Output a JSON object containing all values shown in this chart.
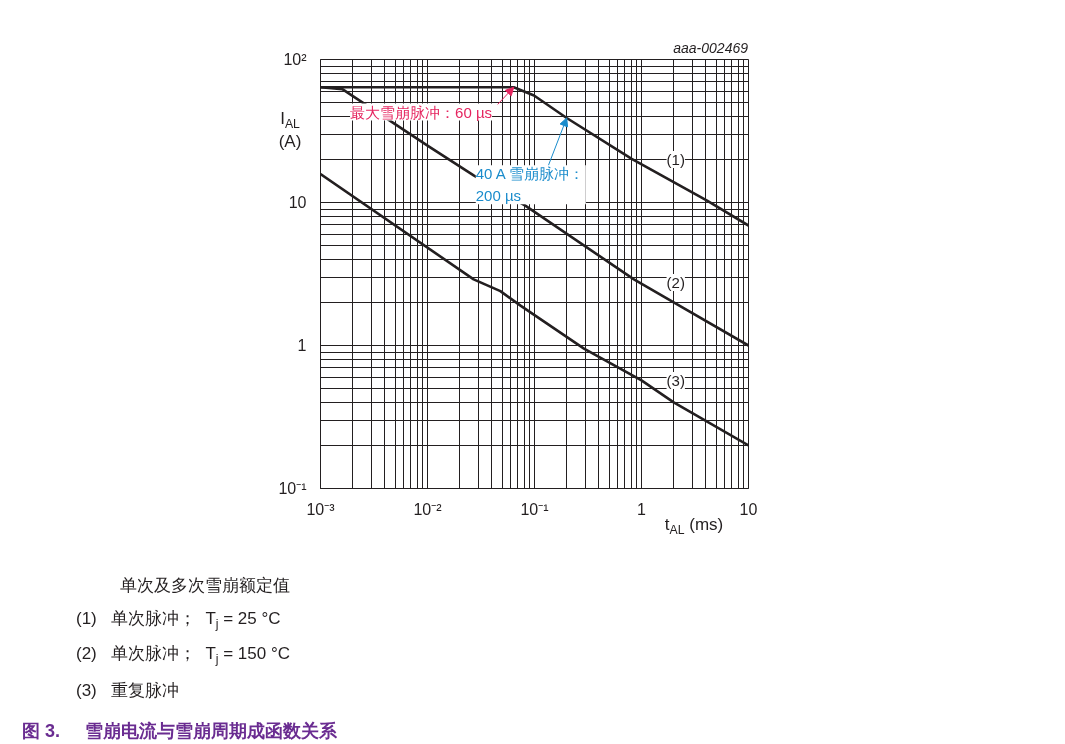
{
  "chart_data": {
    "type": "line",
    "title": "图 3.     雪崩电流与雪崩周期成函数关系",
    "xlabel": "t$_{AL}$ (ms)",
    "ylabel": "I$_{AL}$\n(A)",
    "log": "xy",
    "grid": true,
    "legend": false,
    "marker": "none",
    "line_style": "solid",
    "xlim": [
      0.001,
      10
    ],
    "ylim": [
      0.1,
      100
    ],
    "xticks": [
      {
        "value": 0.001,
        "label": "10⁻³"
      },
      {
        "value": 0.01,
        "label": "10⁻²"
      },
      {
        "value": 0.1,
        "label": "10⁻¹"
      },
      1,
      10
    ],
    "yticks": [
      {
        "value": 0.1,
        "label": "10⁻¹"
      },
      1,
      10,
      {
        "value": 100,
        "label": "10²"
      }
    ],
    "series": [
      {
        "name": "(1)",
        "color": "#231f20",
        "x": [
          0.001,
          0.064,
          0.099,
          0.2,
          0.81,
          4.1,
          10
        ],
        "values": [
          64,
          64,
          56,
          39,
          20.2,
          10.3,
          6.9
        ]
      },
      {
        "name": "(2)",
        "color": "#231f20",
        "x": [
          0.001,
          0.0016,
          0.01,
          0.027,
          0.082,
          0.85,
          2.0,
          10
        ],
        "values": [
          64,
          62,
          25,
          15.5,
          9.5,
          2.9,
          2.0,
          1.0
        ]
      },
      {
        "name": "(3)",
        "color": "#231f20",
        "x": [
          0.001,
          0.027,
          0.048,
          0.074,
          0.29,
          1,
          2,
          10
        ],
        "values": [
          15.8,
          2.9,
          2.4,
          1.9,
          0.95,
          0.57,
          0.4,
          0.2
        ]
      }
    ],
    "annotations": [
      {
        "text": "最大雪崩脉冲：60 µs",
        "x": 0.064,
        "y": 64
      },
      {
        "text": "40 A 雪崩脉冲：\n200 µs",
        "x": 0.2,
        "y": 39
      },
      "aaa-002469",
      "单次及多次雪崩额定值",
      "(1)   单次脉冲；  T$_{j}$ = 25 °C",
      "(2)   单次脉冲；  T$_{j}$ = 150 °C",
      "(3)   重复脉冲"
    ]
  }
}
